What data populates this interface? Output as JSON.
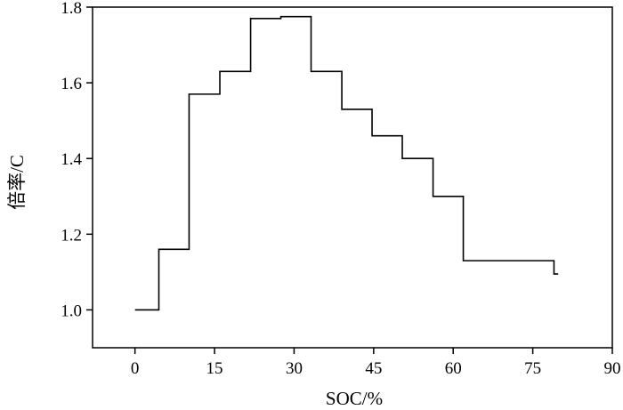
{
  "chart_data": {
    "type": "line",
    "step": true,
    "xlabel": "SOC/%",
    "ylabel": "倍率/C",
    "xlim": [
      -8,
      90
    ],
    "ylim": [
      0.9,
      1.8
    ],
    "xticks": [
      0,
      15,
      30,
      45,
      60,
      75,
      90
    ],
    "yticks": [
      1.0,
      1.2,
      1.4,
      1.6,
      1.8
    ],
    "xtick_labels": [
      "0",
      "15",
      "30",
      "45",
      "60",
      "75",
      "90"
    ],
    "ytick_labels": [
      "1.0",
      "1.2",
      "1.4",
      "1.6",
      "1.8"
    ],
    "grid": false,
    "line_color": "#000000",
    "series": [
      {
        "x": [
          0,
          4.5,
          4.5,
          10.2,
          10.2,
          16.0,
          16.0,
          21.8,
          21.8,
          27.5,
          27.5,
          33.2,
          33.2,
          39.0,
          39.0,
          44.7,
          44.7,
          50.4,
          50.4,
          56.2,
          56.2,
          61.9,
          61.9,
          79.0,
          79.0,
          79.8
        ],
        "y": [
          1.0,
          1.0,
          1.16,
          1.16,
          1.57,
          1.57,
          1.63,
          1.63,
          1.77,
          1.77,
          1.775,
          1.775,
          1.63,
          1.63,
          1.53,
          1.53,
          1.46,
          1.46,
          1.4,
          1.4,
          1.3,
          1.3,
          1.13,
          1.13,
          1.095,
          1.095
        ]
      }
    ]
  }
}
